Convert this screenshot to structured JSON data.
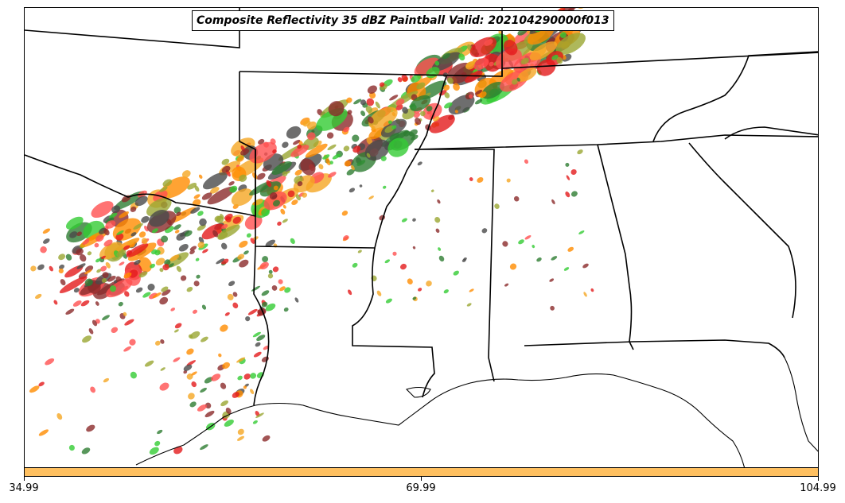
{
  "title": "Composite Reflectivity 35 dBZ Paintball Valid: 202104290000f013",
  "colorbar": {
    "color": "#ffc060",
    "ticks": [
      "34.99",
      "69.99",
      "104.99"
    ]
  },
  "paintball_colors": [
    "#8b2a2a",
    "#e31a1c",
    "#ff8c00",
    "#f5a623",
    "#9aa632",
    "#2e7d32",
    "#33cc33",
    "#4a4a4a",
    "#ff5050"
  ]
}
